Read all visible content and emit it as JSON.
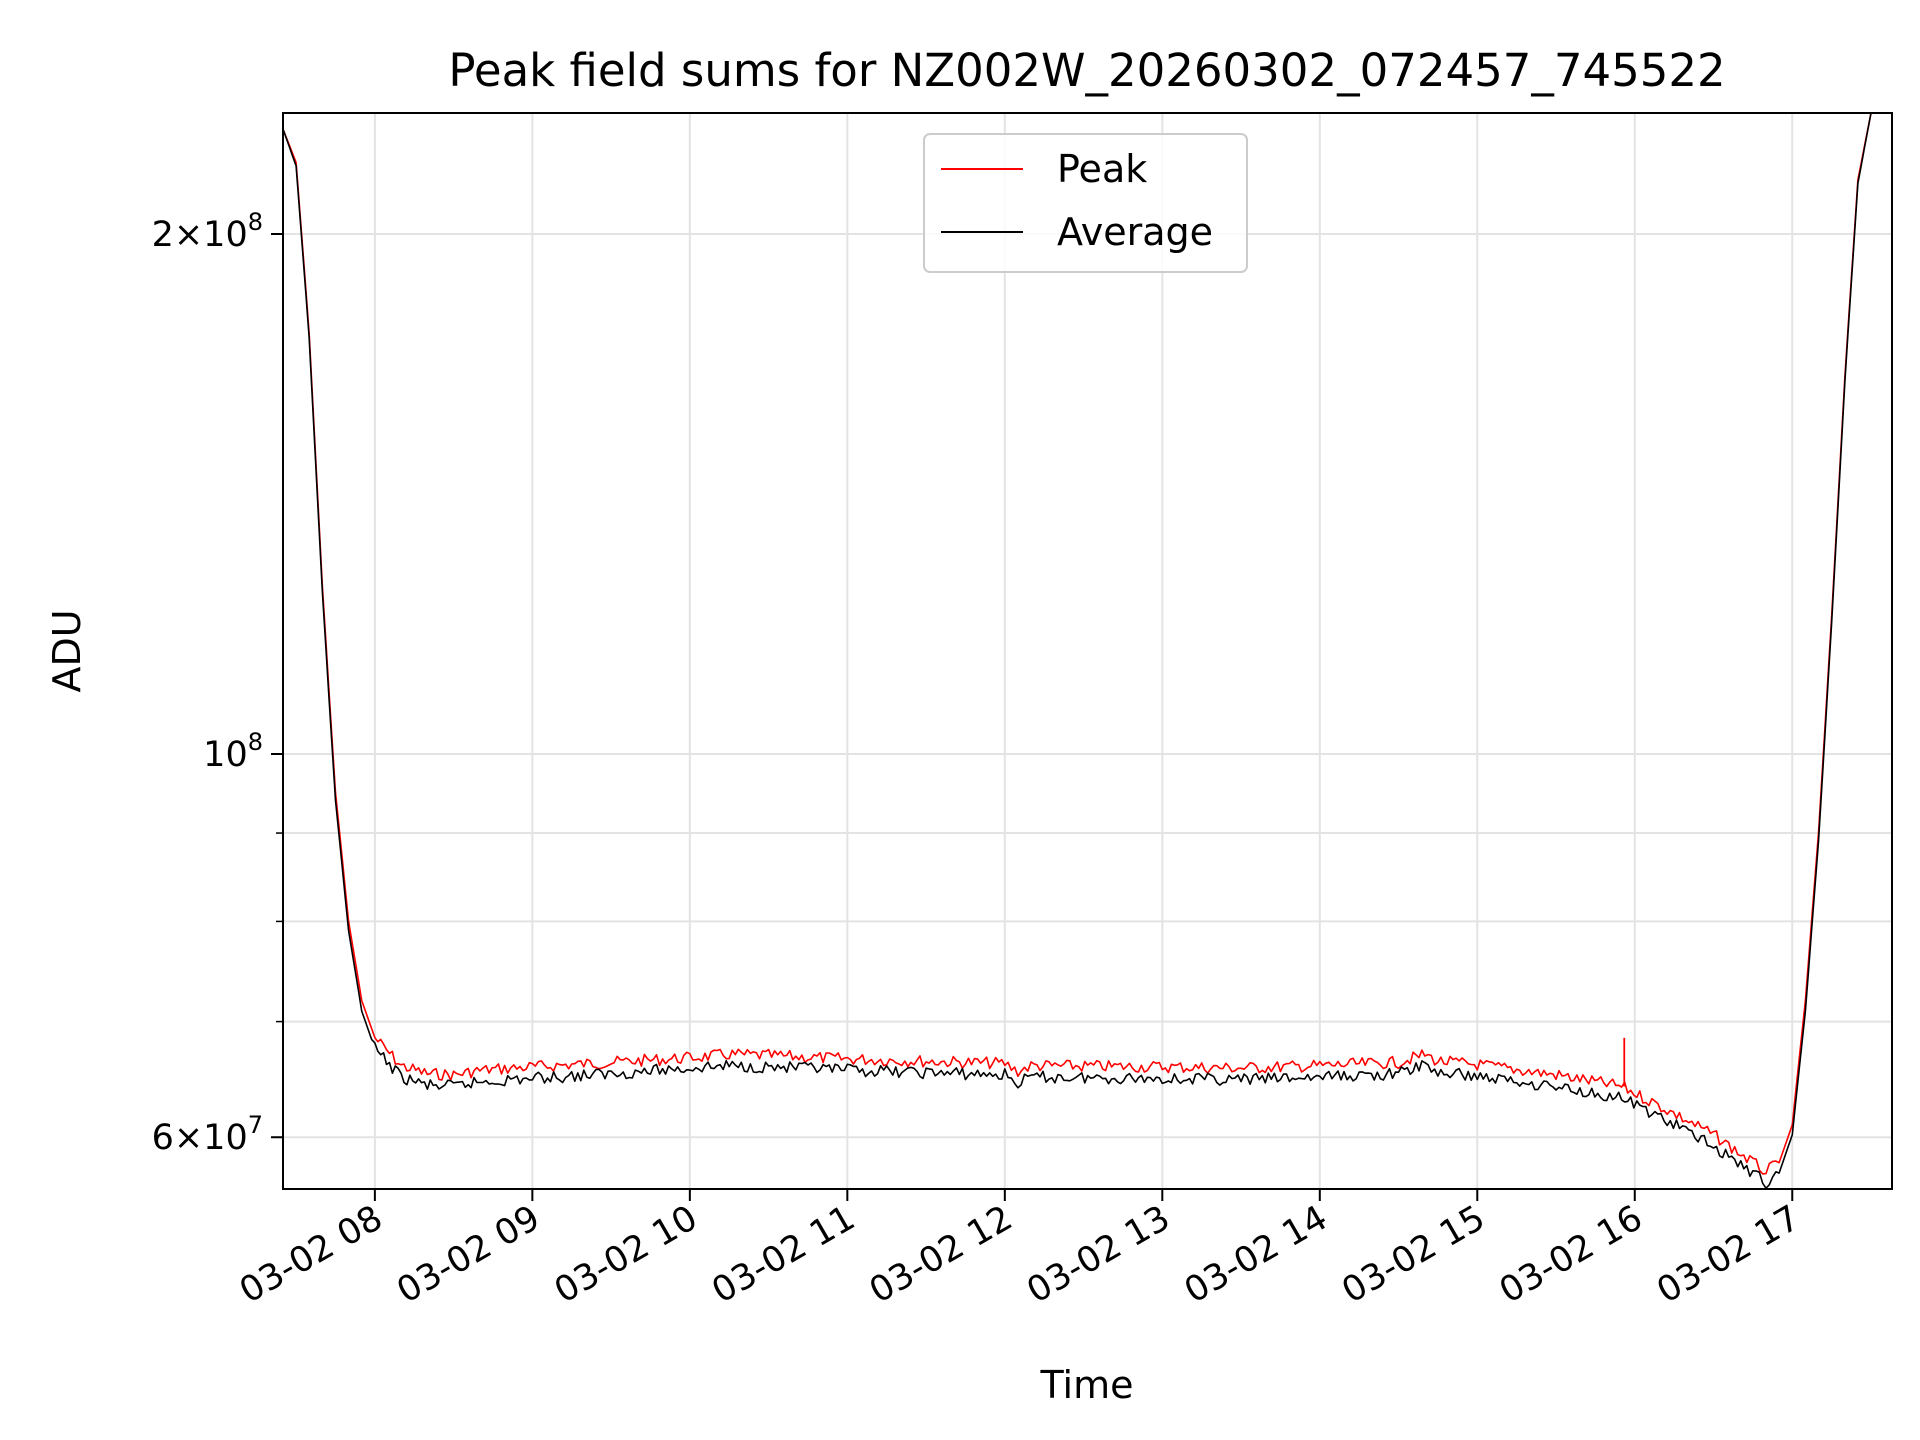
{
  "chart_data": {
    "type": "line",
    "title": "Peak field sums for NZ002W_20260302_072457_745522",
    "xlabel": "Time",
    "ylabel": "ADU",
    "y_scale": "log",
    "ylim": [
      56000000,
      235000000
    ],
    "xlim": [
      "2026-03-02 07:25",
      "2026-03-02 17:38"
    ],
    "x_ticks": [
      {
        "t": "2026-03-02 08:00",
        "label": "03-02 08"
      },
      {
        "t": "2026-03-02 09:00",
        "label": "03-02 09"
      },
      {
        "t": "2026-03-02 10:00",
        "label": "03-02 10"
      },
      {
        "t": "2026-03-02 11:00",
        "label": "03-02 11"
      },
      {
        "t": "2026-03-02 12:00",
        "label": "03-02 12"
      },
      {
        "t": "2026-03-02 13:00",
        "label": "03-02 13"
      },
      {
        "t": "2026-03-02 14:00",
        "label": "03-02 14"
      },
      {
        "t": "2026-03-02 15:00",
        "label": "03-02 15"
      },
      {
        "t": "2026-03-02 16:00",
        "label": "03-02 16"
      },
      {
        "t": "2026-03-02 17:00",
        "label": "03-02 17"
      }
    ],
    "y_major_ticks": [
      {
        "value": 60000000,
        "mantissa": "6",
        "exponent": "7"
      },
      {
        "value": 100000000,
        "mantissa": "",
        "exponent": "8"
      },
      {
        "value": 200000000,
        "mantissa": "2",
        "exponent": "8"
      }
    ],
    "y_minor_ticks": [
      70000000,
      80000000,
      90000000
    ],
    "grid": true,
    "legend_position": "top-center",
    "series": [
      {
        "name": "Peak",
        "color": "#ff0000",
        "points": [
          [
            "2026-03-02 07:25",
            230000000
          ],
          [
            "2026-03-02 07:30",
            220000000
          ],
          [
            "2026-03-02 07:35",
            175000000
          ],
          [
            "2026-03-02 07:40",
            125000000
          ],
          [
            "2026-03-02 07:45",
            95000000
          ],
          [
            "2026-03-02 07:50",
            80000000
          ],
          [
            "2026-03-02 07:55",
            72000000
          ],
          [
            "2026-03-02 08:00",
            68500000
          ],
          [
            "2026-03-02 08:10",
            66000000
          ],
          [
            "2026-03-02 08:20",
            65300000
          ],
          [
            "2026-03-02 08:30",
            65200000
          ],
          [
            "2026-03-02 08:40",
            65600000
          ],
          [
            "2026-03-02 09:00",
            65900000
          ],
          [
            "2026-03-02 09:30",
            66300000
          ],
          [
            "2026-03-02 10:00",
            66700000
          ],
          [
            "2026-03-02 10:15",
            67000000
          ],
          [
            "2026-03-02 10:30",
            66900000
          ],
          [
            "2026-03-02 11:00",
            66600000
          ],
          [
            "2026-03-02 11:30",
            66400000
          ],
          [
            "2026-03-02 12:00",
            66200000
          ],
          [
            "2026-03-02 12:05",
            65500000
          ],
          [
            "2026-03-02 12:10",
            66000000
          ],
          [
            "2026-03-02 13:00",
            65900000
          ],
          [
            "2026-03-02 13:30",
            65800000
          ],
          [
            "2026-03-02 14:00",
            66000000
          ],
          [
            "2026-03-02 14:30",
            66300000
          ],
          [
            "2026-03-02 14:40",
            67000000
          ],
          [
            "2026-03-02 14:45",
            66400000
          ],
          [
            "2026-03-02 15:00",
            66100000
          ],
          [
            "2026-03-02 15:30",
            65200000
          ],
          [
            "2026-03-02 15:55",
            64200000
          ],
          [
            "2026-03-02 16:10",
            62500000
          ],
          [
            "2026-03-02 16:30",
            60200000
          ],
          [
            "2026-03-02 16:45",
            58000000
          ],
          [
            "2026-03-02 16:50",
            57300000
          ],
          [
            "2026-03-02 16:55",
            58000000
          ],
          [
            "2026-03-02 17:00",
            61000000
          ],
          [
            "2026-03-02 17:05",
            72000000
          ],
          [
            "2026-03-02 17:10",
            90000000
          ],
          [
            "2026-03-02 17:15",
            120000000
          ],
          [
            "2026-03-02 17:20",
            165000000
          ],
          [
            "2026-03-02 17:25",
            215000000
          ],
          [
            "2026-03-02 17:30",
            235000000
          ]
        ]
      },
      {
        "name": "Average",
        "color": "#000000",
        "points": [
          [
            "2026-03-02 07:25",
            230000000
          ],
          [
            "2026-03-02 07:30",
            219000000
          ],
          [
            "2026-03-02 07:35",
            174000000
          ],
          [
            "2026-03-02 07:40",
            124000000
          ],
          [
            "2026-03-02 07:45",
            94000000
          ],
          [
            "2026-03-02 07:50",
            79000000
          ],
          [
            "2026-03-02 07:55",
            71000000
          ],
          [
            "2026-03-02 08:00",
            67500000
          ],
          [
            "2026-03-02 08:10",
            65000000
          ],
          [
            "2026-03-02 08:20",
            64300000
          ],
          [
            "2026-03-02 08:30",
            64200000
          ],
          [
            "2026-03-02 08:40",
            64600000
          ],
          [
            "2026-03-02 09:00",
            64900000
          ],
          [
            "2026-03-02 09:30",
            65300000
          ],
          [
            "2026-03-02 10:00",
            65800000
          ],
          [
            "2026-03-02 10:15",
            66000000
          ],
          [
            "2026-03-02 10:30",
            65900000
          ],
          [
            "2026-03-02 11:00",
            65600000
          ],
          [
            "2026-03-02 11:30",
            65400000
          ],
          [
            "2026-03-02 12:00",
            65200000
          ],
          [
            "2026-03-02 12:05",
            64500000
          ],
          [
            "2026-03-02 12:10",
            65000000
          ],
          [
            "2026-03-02 13:00",
            64900000
          ],
          [
            "2026-03-02 13:30",
            64800000
          ],
          [
            "2026-03-02 14:00",
            65000000
          ],
          [
            "2026-03-02 14:30",
            65300000
          ],
          [
            "2026-03-02 14:40",
            66100000
          ],
          [
            "2026-03-02 14:45",
            65400000
          ],
          [
            "2026-03-02 15:00",
            65100000
          ],
          [
            "2026-03-02 15:30",
            64200000
          ],
          [
            "2026-03-02 15:55",
            63200000
          ],
          [
            "2026-03-02 16:10",
            61600000
          ],
          [
            "2026-03-02 16:30",
            59300000
          ],
          [
            "2026-03-02 16:45",
            57200000
          ],
          [
            "2026-03-02 16:50",
            56500000
          ],
          [
            "2026-03-02 16:55",
            57200000
          ],
          [
            "2026-03-02 17:00",
            60200000
          ],
          [
            "2026-03-02 17:05",
            71000000
          ],
          [
            "2026-03-02 17:10",
            89000000
          ],
          [
            "2026-03-02 17:15",
            119000000
          ],
          [
            "2026-03-02 17:20",
            164000000
          ],
          [
            "2026-03-02 17:25",
            214000000
          ],
          [
            "2026-03-02 17:30",
            235000000
          ]
        ]
      }
    ],
    "annotations": [
      {
        "series": "Peak",
        "type": "spike",
        "t": "2026-03-02 15:56",
        "value": 68500000
      }
    ]
  }
}
